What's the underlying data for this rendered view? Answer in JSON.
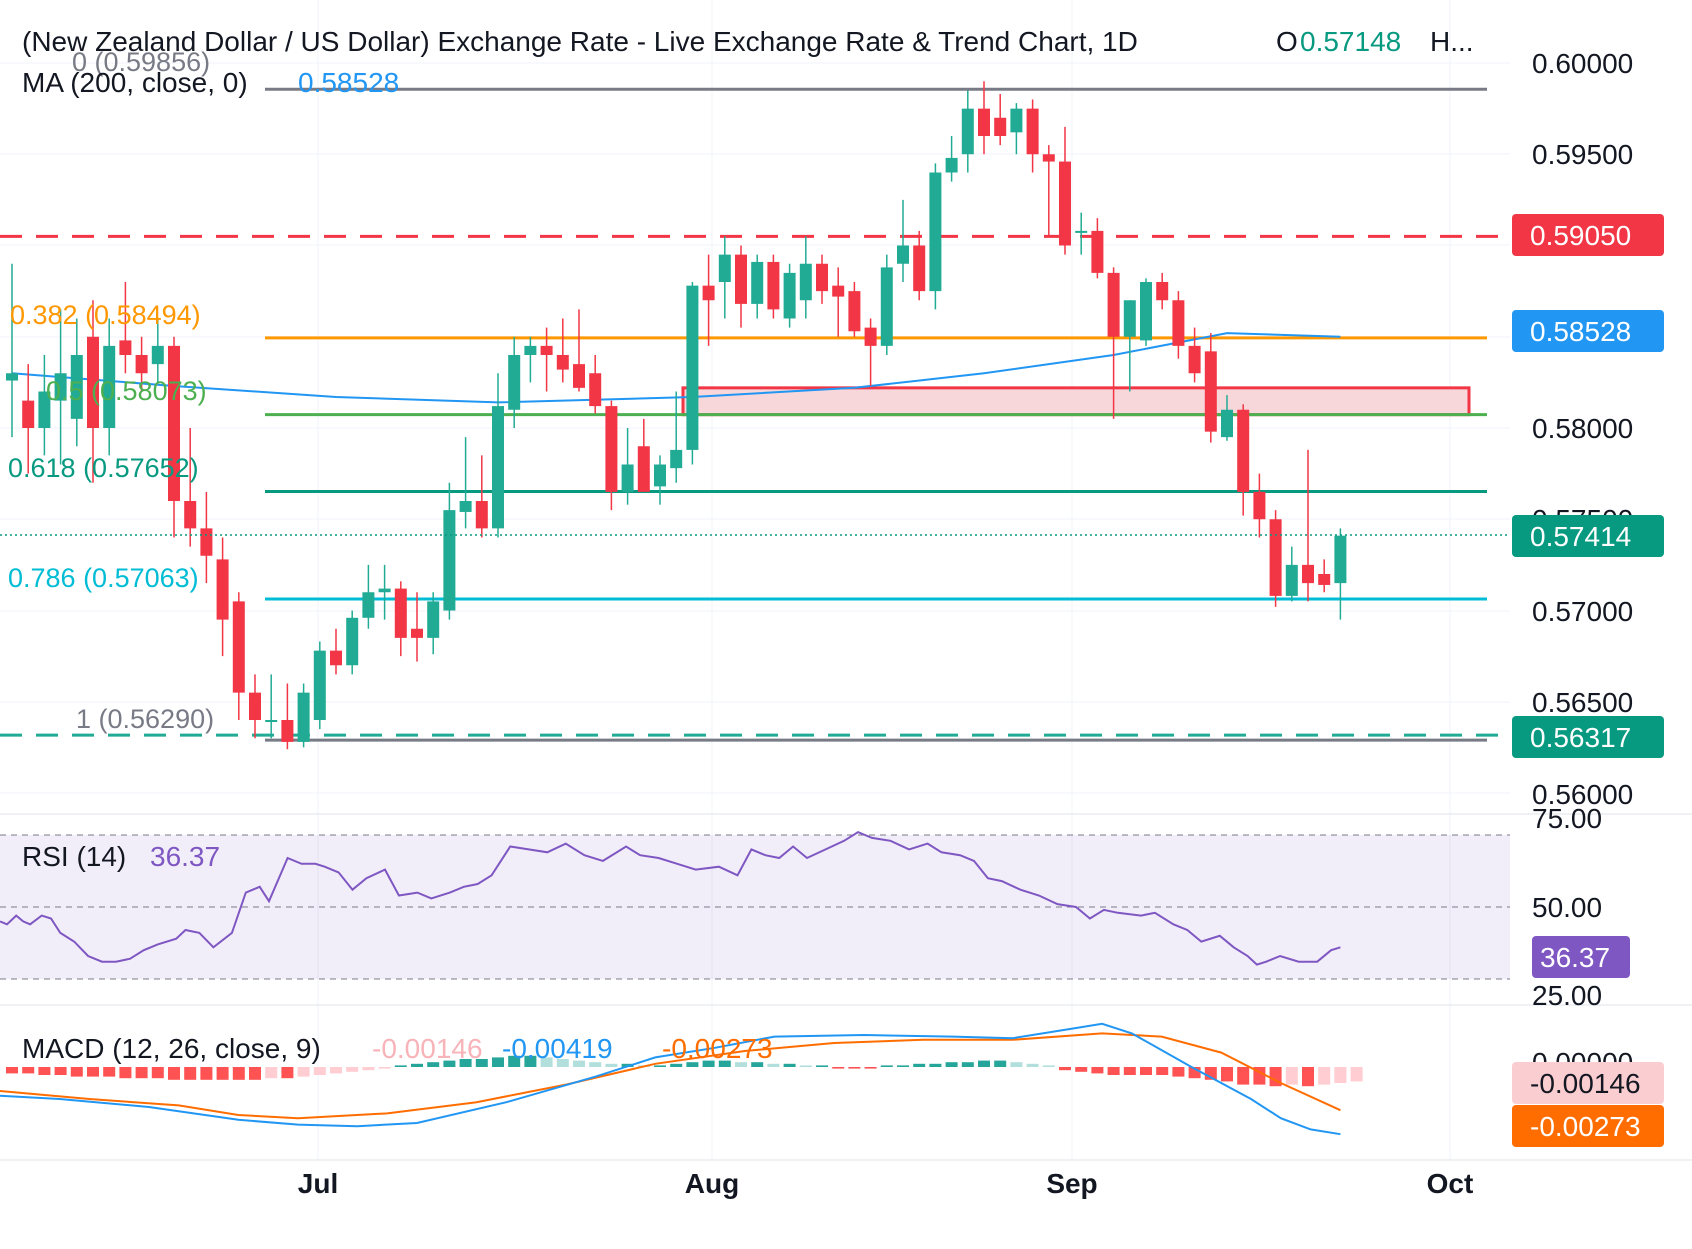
{
  "header": {
    "title": "(New Zealand Dollar / US Dollar) Exchange Rate - Live Exchange Rate & Trend Chart, 1D",
    "open_label": "O",
    "open_value": "0.57148",
    "more": "H...",
    "ma_label": "MA (200, close, 0)",
    "ma_value": "0.58528"
  },
  "fib": {
    "level_0": "0 (0.59856)",
    "level_382": "0.382 (0.58494)",
    "level_5": "0.5 (0.58073)",
    "level_618": "0.618 (0.57652)",
    "level_786": "0.786 (0.57063)",
    "level_1": "1 (0.56290)"
  },
  "price_axis": {
    "ticks": [
      "0.60000",
      "0.59500",
      "0.59050",
      "0.58528",
      "0.58000",
      "0.57500",
      "0.57414",
      "0.57000",
      "0.56500",
      "0.56317",
      "0.56000"
    ]
  },
  "time_axis": {
    "labels": [
      "Jul",
      "Aug",
      "Sep",
      "Oct"
    ]
  },
  "rsi": {
    "label": "RSI (14)",
    "value": "36.37",
    "ticks": [
      "75.00",
      "50.00",
      "36.37",
      "25.00"
    ]
  },
  "macd": {
    "label": "MACD (12, 26, close, 9)",
    "hist_value": "-0.00146",
    "macd_value": "-0.00419",
    "signal_value": "-0.00273",
    "ticks": [
      "0.00000",
      "-0.00146",
      "-0.00273"
    ]
  },
  "colors": {
    "up": "#22ab94",
    "down": "#f23645",
    "ma": "#2196f3",
    "rsi": "#7e57c2",
    "macd": "#2196f3",
    "signal": "#ff6d00",
    "fib_382": "#ff9800",
    "fib_5": "#4caf50",
    "fib_618": "#089981",
    "fib_786": "#00bcd4",
    "fib_range": "#787b86",
    "resistance": "#f23645"
  },
  "chart_data": {
    "type": "candlestick",
    "price_ylim": [
      0.5595,
      0.6017
    ],
    "x_start_date": "2024-06-04",
    "candles": [
      {
        "d": "2024-06-04",
        "o": 0.5826,
        "h": 0.589,
        "l": 0.5795,
        "c": 0.583
      },
      {
        "d": "2024-06-05",
        "o": 0.5815,
        "h": 0.5835,
        "l": 0.5775,
        "c": 0.58
      },
      {
        "d": "2024-06-06",
        "o": 0.58,
        "h": 0.584,
        "l": 0.5785,
        "c": 0.582
      },
      {
        "d": "2024-06-07",
        "o": 0.5815,
        "h": 0.5865,
        "l": 0.578,
        "c": 0.583
      },
      {
        "d": "2024-06-10",
        "o": 0.5805,
        "h": 0.586,
        "l": 0.579,
        "c": 0.584
      },
      {
        "d": "2024-06-11",
        "o": 0.585,
        "h": 0.587,
        "l": 0.577,
        "c": 0.58
      },
      {
        "d": "2024-06-12",
        "o": 0.58,
        "h": 0.586,
        "l": 0.5785,
        "c": 0.5845
      },
      {
        "d": "2024-06-13",
        "o": 0.5848,
        "h": 0.588,
        "l": 0.583,
        "c": 0.584
      },
      {
        "d": "2024-06-14",
        "o": 0.584,
        "h": 0.585,
        "l": 0.582,
        "c": 0.583
      },
      {
        "d": "2024-06-17",
        "o": 0.5835,
        "h": 0.586,
        "l": 0.5825,
        "c": 0.5845
      },
      {
        "d": "2024-06-18",
        "o": 0.5845,
        "h": 0.585,
        "l": 0.574,
        "c": 0.576
      },
      {
        "d": "2024-06-19",
        "o": 0.576,
        "h": 0.58,
        "l": 0.5735,
        "c": 0.5745
      },
      {
        "d": "2024-06-20",
        "o": 0.5745,
        "h": 0.5765,
        "l": 0.5715,
        "c": 0.573
      },
      {
        "d": "2024-06-21",
        "o": 0.5728,
        "h": 0.574,
        "l": 0.5675,
        "c": 0.5695
      },
      {
        "d": "2024-06-24",
        "o": 0.5705,
        "h": 0.571,
        "l": 0.564,
        "c": 0.5655
      },
      {
        "d": "2024-06-25",
        "o": 0.5655,
        "h": 0.5665,
        "l": 0.563,
        "c": 0.564
      },
      {
        "d": "2024-06-26",
        "o": 0.564,
        "h": 0.5665,
        "l": 0.563,
        "c": 0.564
      },
      {
        "d": "2024-06-27",
        "o": 0.564,
        "h": 0.566,
        "l": 0.5624,
        "c": 0.5628
      },
      {
        "d": "2024-06-28",
        "o": 0.5628,
        "h": 0.566,
        "l": 0.5625,
        "c": 0.5655
      },
      {
        "d": "2024-07-01",
        "o": 0.564,
        "h": 0.5683,
        "l": 0.5635,
        "c": 0.5678
      },
      {
        "d": "2024-07-02",
        "o": 0.5678,
        "h": 0.569,
        "l": 0.5665,
        "c": 0.567
      },
      {
        "d": "2024-07-03",
        "o": 0.567,
        "h": 0.57,
        "l": 0.5665,
        "c": 0.5696
      },
      {
        "d": "2024-07-04",
        "o": 0.5696,
        "h": 0.5725,
        "l": 0.569,
        "c": 0.571
      },
      {
        "d": "2024-07-05",
        "o": 0.571,
        "h": 0.5725,
        "l": 0.5695,
        "c": 0.5712
      },
      {
        "d": "2024-07-08",
        "o": 0.5712,
        "h": 0.5716,
        "l": 0.5675,
        "c": 0.5685
      },
      {
        "d": "2024-07-09",
        "o": 0.569,
        "h": 0.571,
        "l": 0.5672,
        "c": 0.5685
      },
      {
        "d": "2024-07-10",
        "o": 0.5685,
        "h": 0.571,
        "l": 0.5676,
        "c": 0.5705
      },
      {
        "d": "2024-07-11",
        "o": 0.57,
        "h": 0.577,
        "l": 0.5695,
        "c": 0.5755
      },
      {
        "d": "2024-07-12",
        "o": 0.5754,
        "h": 0.5795,
        "l": 0.5745,
        "c": 0.576
      },
      {
        "d": "2024-07-15",
        "o": 0.576,
        "h": 0.5785,
        "l": 0.574,
        "c": 0.5745
      },
      {
        "d": "2024-07-16",
        "o": 0.5745,
        "h": 0.583,
        "l": 0.574,
        "c": 0.5812
      },
      {
        "d": "2024-07-17",
        "o": 0.581,
        "h": 0.585,
        "l": 0.58,
        "c": 0.584
      },
      {
        "d": "2024-07-18",
        "o": 0.584,
        "h": 0.585,
        "l": 0.5825,
        "c": 0.5845
      },
      {
        "d": "2024-07-19",
        "o": 0.5845,
        "h": 0.5855,
        "l": 0.582,
        "c": 0.584
      },
      {
        "d": "2024-07-22",
        "o": 0.584,
        "h": 0.586,
        "l": 0.5825,
        "c": 0.5832
      },
      {
        "d": "2024-07-23",
        "o": 0.5835,
        "h": 0.5865,
        "l": 0.582,
        "c": 0.5822
      },
      {
        "d": "2024-07-24",
        "o": 0.583,
        "h": 0.584,
        "l": 0.5808,
        "c": 0.5812
      },
      {
        "d": "2024-07-25",
        "o": 0.5812,
        "h": 0.5815,
        "l": 0.5755,
        "c": 0.5765
      },
      {
        "d": "2024-07-26",
        "o": 0.5765,
        "h": 0.58,
        "l": 0.5758,
        "c": 0.578
      },
      {
        "d": "2024-07-29",
        "o": 0.579,
        "h": 0.5805,
        "l": 0.5765,
        "c": 0.5765
      },
      {
        "d": "2024-07-30",
        "o": 0.5768,
        "h": 0.5785,
        "l": 0.5758,
        "c": 0.578
      },
      {
        "d": "2024-07-31",
        "o": 0.5778,
        "h": 0.582,
        "l": 0.577,
        "c": 0.5788
      },
      {
        "d": "2024-08-01",
        "o": 0.5788,
        "h": 0.588,
        "l": 0.578,
        "c": 0.5878
      },
      {
        "d": "2024-08-02",
        "o": 0.5878,
        "h": 0.5895,
        "l": 0.5845,
        "c": 0.587
      },
      {
        "d": "2024-08-05",
        "o": 0.588,
        "h": 0.5905,
        "l": 0.586,
        "c": 0.5895
      },
      {
        "d": "2024-08-06",
        "o": 0.5895,
        "h": 0.59,
        "l": 0.5855,
        "c": 0.5868
      },
      {
        "d": "2024-08-07",
        "o": 0.5868,
        "h": 0.5895,
        "l": 0.586,
        "c": 0.5891
      },
      {
        "d": "2024-08-08",
        "o": 0.5891,
        "h": 0.5895,
        "l": 0.586,
        "c": 0.5865
      },
      {
        "d": "2024-08-09",
        "o": 0.586,
        "h": 0.589,
        "l": 0.5855,
        "c": 0.5885
      },
      {
        "d": "2024-08-12",
        "o": 0.587,
        "h": 0.5905,
        "l": 0.586,
        "c": 0.589
      },
      {
        "d": "2024-08-13",
        "o": 0.589,
        "h": 0.5895,
        "l": 0.5868,
        "c": 0.5875
      },
      {
        "d": "2024-08-14",
        "o": 0.5878,
        "h": 0.5888,
        "l": 0.585,
        "c": 0.5872
      },
      {
        "d": "2024-08-15",
        "o": 0.5875,
        "h": 0.588,
        "l": 0.585,
        "c": 0.5853
      },
      {
        "d": "2024-08-16",
        "o": 0.5855,
        "h": 0.586,
        "l": 0.5823,
        "c": 0.5845
      },
      {
        "d": "2024-08-19",
        "o": 0.5845,
        "h": 0.5895,
        "l": 0.584,
        "c": 0.5888
      },
      {
        "d": "2024-08-20",
        "o": 0.589,
        "h": 0.5925,
        "l": 0.588,
        "c": 0.59
      },
      {
        "d": "2024-08-21",
        "o": 0.59,
        "h": 0.5908,
        "l": 0.587,
        "c": 0.5875
      },
      {
        "d": "2024-08-22",
        "o": 0.5875,
        "h": 0.5945,
        "l": 0.5865,
        "c": 0.594
      },
      {
        "d": "2024-08-23",
        "o": 0.594,
        "h": 0.596,
        "l": 0.5935,
        "c": 0.5948
      },
      {
        "d": "2024-08-26",
        "o": 0.595,
        "h": 0.5985,
        "l": 0.594,
        "c": 0.5975
      },
      {
        "d": "2024-08-27",
        "o": 0.5975,
        "h": 0.599,
        "l": 0.595,
        "c": 0.596
      },
      {
        "d": "2024-08-28",
        "o": 0.597,
        "h": 0.5983,
        "l": 0.5955,
        "c": 0.596
      },
      {
        "d": "2024-08-29",
        "o": 0.5962,
        "h": 0.5978,
        "l": 0.595,
        "c": 0.5975
      },
      {
        "d": "2024-08-30",
        "o": 0.5975,
        "h": 0.598,
        "l": 0.594,
        "c": 0.595
      },
      {
        "d": "2024-09-02",
        "o": 0.595,
        "h": 0.5955,
        "l": 0.5905,
        "c": 0.5946
      },
      {
        "d": "2024-09-03",
        "o": 0.5946,
        "h": 0.5965,
        "l": 0.5895,
        "c": 0.59
      },
      {
        "d": "2024-09-04",
        "o": 0.5908,
        "h": 0.5918,
        "l": 0.5895,
        "c": 0.5908
      },
      {
        "d": "2024-09-05",
        "o": 0.5908,
        "h": 0.5915,
        "l": 0.5882,
        "c": 0.5885
      },
      {
        "d": "2024-09-06",
        "o": 0.5885,
        "h": 0.5888,
        "l": 0.5805,
        "c": 0.585
      },
      {
        "d": "2024-09-09",
        "o": 0.585,
        "h": 0.587,
        "l": 0.582,
        "c": 0.587
      },
      {
        "d": "2024-09-10",
        "o": 0.5848,
        "h": 0.5882,
        "l": 0.5845,
        "c": 0.588
      },
      {
        "d": "2024-09-11",
        "o": 0.588,
        "h": 0.5885,
        "l": 0.5865,
        "c": 0.587
      },
      {
        "d": "2024-09-12",
        "o": 0.587,
        "h": 0.5875,
        "l": 0.5838,
        "c": 0.5845
      },
      {
        "d": "2024-09-13",
        "o": 0.5845,
        "h": 0.5855,
        "l": 0.5825,
        "c": 0.583
      },
      {
        "d": "2024-09-16",
        "o": 0.5842,
        "h": 0.5852,
        "l": 0.5792,
        "c": 0.5798
      },
      {
        "d": "2024-09-17",
        "o": 0.5795,
        "h": 0.5818,
        "l": 0.5793,
        "c": 0.581
      },
      {
        "d": "2024-09-18",
        "o": 0.581,
        "h": 0.5813,
        "l": 0.5752,
        "c": 0.5765
      },
      {
        "d": "2024-09-19",
        "o": 0.5765,
        "h": 0.5775,
        "l": 0.574,
        "c": 0.575
      },
      {
        "d": "2024-09-20",
        "o": 0.575,
        "h": 0.5755,
        "l": 0.5702,
        "c": 0.5708
      },
      {
        "d": "2024-09-23",
        "o": 0.5708,
        "h": 0.5735,
        "l": 0.5705,
        "c": 0.5725
      },
      {
        "d": "2024-09-24",
        "o": 0.5725,
        "h": 0.5788,
        "l": 0.5705,
        "c": 0.5715
      },
      {
        "d": "2024-09-25",
        "o": 0.572,
        "h": 0.5728,
        "l": 0.571,
        "c": 0.5714
      },
      {
        "d": "2024-09-26",
        "o": 0.5715,
        "h": 0.5745,
        "l": 0.5695,
        "c": 0.5741
      }
    ],
    "ma200": [
      [
        0,
        0.583
      ],
      [
        10,
        0.5823
      ],
      [
        20,
        0.5817
      ],
      [
        30,
        0.5814
      ],
      [
        42,
        0.5817
      ],
      [
        52,
        0.5822
      ],
      [
        60,
        0.583
      ],
      [
        68,
        0.584
      ],
      [
        75,
        0.5852
      ],
      [
        82,
        0.585
      ]
    ],
    "fib_levels": [
      {
        "ratio": "0",
        "price": 0.59856
      },
      {
        "ratio": "0.382",
        "price": 0.58494
      },
      {
        "ratio": "0.5",
        "price": 0.58073
      },
      {
        "ratio": "0.618",
        "price": 0.57652
      },
      {
        "ratio": "0.786",
        "price": 0.57063
      },
      {
        "ratio": "1",
        "price": 0.5629
      }
    ],
    "resistance": 0.5905,
    "support": 0.56317,
    "current_price": 0.57414,
    "supply_zone": [
      0.58073,
      0.5822
    ],
    "rsi_ylim": [
      21,
      78
    ],
    "rsi_levels": [
      75,
      50,
      25
    ],
    "rsi": [
      [
        0,
        45
      ],
      [
        3,
        44
      ],
      [
        7,
        47
      ],
      [
        10,
        45
      ],
      [
        13,
        44
      ],
      [
        18,
        47
      ],
      [
        22,
        46
      ],
      [
        26,
        41
      ],
      [
        32,
        38
      ],
      [
        38,
        33
      ],
      [
        44,
        31
      ],
      [
        50,
        31
      ],
      [
        56,
        32
      ],
      [
        62,
        35
      ],
      [
        68,
        37
      ],
      [
        76,
        39
      ],
      [
        80,
        42
      ],
      [
        86,
        41
      ],
      [
        92,
        36
      ],
      [
        100,
        41
      ],
      [
        106,
        55
      ],
      [
        112,
        57
      ],
      [
        116,
        52
      ],
      [
        124,
        67
      ],
      [
        130,
        65
      ],
      [
        136,
        65
      ],
      [
        140,
        64
      ],
      [
        146,
        62
      ],
      [
        152,
        56
      ],
      [
        158,
        60
      ],
      [
        166,
        63
      ],
      [
        172,
        54
      ],
      [
        180,
        55
      ],
      [
        186,
        53
      ],
      [
        194,
        55
      ],
      [
        200,
        57
      ],
      [
        206,
        58
      ],
      [
        212,
        61
      ],
      [
        220,
        71
      ],
      [
        228,
        70
      ],
      [
        236,
        69
      ],
      [
        244,
        72
      ],
      [
        252,
        68
      ],
      [
        260,
        66
      ],
      [
        270,
        71
      ],
      [
        276,
        68
      ],
      [
        284,
        67
      ],
      [
        292,
        65
      ],
      [
        300,
        63
      ],
      [
        310,
        64
      ],
      [
        318,
        61
      ],
      [
        324,
        70
      ],
      [
        330,
        68
      ],
      [
        336,
        67
      ],
      [
        342,
        71
      ],
      [
        348,
        67
      ],
      [
        356,
        70
      ],
      [
        364,
        73
      ],
      [
        370,
        76
      ],
      [
        376,
        74
      ],
      [
        384,
        73
      ],
      [
        392,
        70
      ],
      [
        400,
        72
      ],
      [
        406,
        69
      ],
      [
        414,
        68
      ],
      [
        420,
        66
      ],
      [
        426,
        60
      ],
      [
        432,
        59
      ],
      [
        440,
        56
      ],
      [
        448,
        54
      ],
      [
        456,
        51
      ],
      [
        464,
        50
      ],
      [
        470,
        46
      ],
      [
        476,
        49
      ],
      [
        482,
        48
      ],
      [
        492,
        47
      ],
      [
        498,
        48
      ],
      [
        506,
        44
      ],
      [
        512,
        42
      ],
      [
        518,
        38
      ],
      [
        526,
        40
      ],
      [
        532,
        36
      ],
      [
        538,
        33
      ],
      [
        542,
        30
      ],
      [
        546,
        31
      ],
      [
        552,
        33
      ],
      [
        560,
        31
      ],
      [
        568,
        31
      ],
      [
        574,
        35
      ],
      [
        578,
        36
      ]
    ],
    "macd_ylim": [
      -0.0043,
      0.0033
    ],
    "macd": [
      [
        0,
        -0.0018
      ],
      [
        4,
        -0.002
      ],
      [
        10,
        -0.0025
      ],
      [
        16,
        -0.0033
      ],
      [
        20,
        -0.0036
      ],
      [
        24,
        -0.0037
      ],
      [
        28,
        -0.0035
      ],
      [
        34,
        -0.0022
      ],
      [
        40,
        -0.0006
      ],
      [
        44,
        0.0006
      ],
      [
        48,
        0.0012
      ],
      [
        52,
        0.0019
      ],
      [
        58,
        0.002
      ],
      [
        64,
        0.0019
      ],
      [
        68,
        0.0018
      ],
      [
        72,
        0.0024
      ],
      [
        74,
        0.0027
      ],
      [
        76,
        0.0021
      ],
      [
        80,
        0.0
      ],
      [
        84,
        -0.002
      ],
      [
        86,
        -0.0032
      ],
      [
        88,
        -0.0039
      ],
      [
        90,
        -0.0042
      ]
    ],
    "signal": [
      [
        0,
        -0.0015
      ],
      [
        6,
        -0.002
      ],
      [
        12,
        -0.0024
      ],
      [
        16,
        -0.003
      ],
      [
        20,
        -0.0032
      ],
      [
        26,
        -0.0029
      ],
      [
        32,
        -0.0022
      ],
      [
        38,
        -0.0011
      ],
      [
        44,
        0.0002
      ],
      [
        50,
        0.001
      ],
      [
        56,
        0.0015
      ],
      [
        62,
        0.0017
      ],
      [
        68,
        0.0017
      ],
      [
        74,
        0.0021
      ],
      [
        78,
        0.0019
      ],
      [
        82,
        0.0009
      ],
      [
        86,
        -0.001
      ],
      [
        90,
        -0.0027
      ]
    ],
    "macd_hist": [
      -0.0004,
      -0.0004,
      -0.0005,
      -0.0005,
      -0.0006,
      -0.0006,
      -0.0006,
      -0.0007,
      -0.0007,
      -0.0007,
      -0.0008,
      -0.0008,
      -0.0008,
      -0.0008,
      -0.0008,
      -0.0008,
      -0.0007,
      -0.0007,
      -0.0006,
      -0.0005,
      -0.0004,
      -0.0003,
      -0.0002,
      -0.0001,
      0.0001,
      0.0002,
      0.0003,
      0.0004,
      0.0005,
      0.0005,
      0.0006,
      0.0007,
      0.0007,
      0.0006,
      0.0005,
      0.0004,
      0.0003,
      0.0002,
      0.0002,
      0.0001,
      0.0001,
      0.0002,
      0.0003,
      0.0004,
      0.0004,
      0.0003,
      0.0003,
      0.0002,
      0.0002,
      0.0001,
      0.0001,
      -0.0001,
      -0.0001,
      -0.0001,
      0.0001,
      0.0001,
      0.0002,
      0.0002,
      0.0003,
      0.0003,
      0.0004,
      0.0004,
      0.0003,
      0.0002,
      0.0001,
      -0.0002,
      -0.0003,
      -0.0004,
      -0.0005,
      -0.0005,
      -0.0005,
      -0.0005,
      -0.0006,
      -0.0007,
      -0.0008,
      -0.0009,
      -0.0011,
      -0.0011,
      -0.0012,
      -0.0011,
      -0.0012,
      -0.0011,
      -0.001,
      -0.0009
    ]
  }
}
